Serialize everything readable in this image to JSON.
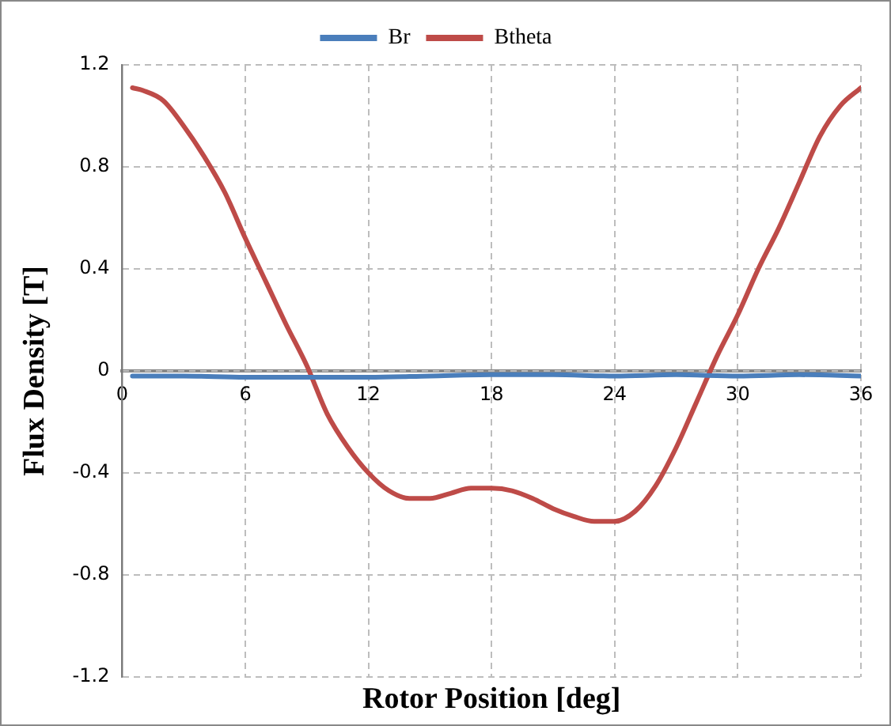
{
  "chart_data": {
    "type": "line",
    "xlabel": "Rotor Position [deg]",
    "ylabel": "Flux Density [T]",
    "xlim": [
      0,
      36
    ],
    "xticks": [
      0,
      6,
      12,
      18,
      24,
      30,
      36
    ],
    "ylim": [
      -1.2,
      1.2
    ],
    "yticks": [
      {
        "value": 1.2,
        "label": "1.2"
      },
      {
        "value": 0.8,
        "label": "0.8"
      },
      {
        "value": 0.4,
        "label": "0.4"
      },
      {
        "value": 0,
        "label": "0"
      },
      {
        "value": -0.4,
        "label": "-0.4"
      },
      {
        "value": -0.8,
        "label": "-0.8"
      },
      {
        "value": -1.2,
        "label": "-1.2"
      }
    ],
    "grid": true,
    "legend": "top",
    "line_style": "solid",
    "marker": "none",
    "series": [
      {
        "name": "Br",
        "color": "#4a7ebb",
        "x": [
          0.5,
          3,
          6,
          9,
          12,
          15,
          18,
          21,
          24,
          27,
          30,
          33,
          36
        ],
        "values": [
          -0.02,
          -0.02,
          -0.025,
          -0.025,
          -0.025,
          -0.02,
          -0.015,
          -0.015,
          -0.02,
          -0.015,
          -0.02,
          -0.015,
          -0.02
        ]
      },
      {
        "name": "Btheta",
        "color": "#be4b48",
        "x": [
          0.5,
          1,
          2,
          3,
          4,
          5,
          6,
          7,
          8,
          9,
          10,
          11,
          12,
          13,
          14,
          15,
          16,
          17,
          18,
          19,
          20,
          21,
          22,
          23,
          24,
          25,
          26,
          27,
          28,
          29,
          30,
          31,
          32,
          33,
          34,
          35,
          36
        ],
        "values": [
          1.11,
          1.1,
          1.06,
          0.96,
          0.84,
          0.7,
          0.52,
          0.35,
          0.18,
          0.02,
          -0.17,
          -0.3,
          -0.4,
          -0.47,
          -0.5,
          -0.5,
          -0.48,
          -0.46,
          -0.46,
          -0.47,
          -0.5,
          -0.54,
          -0.57,
          -0.59,
          -0.59,
          -0.55,
          -0.45,
          -0.3,
          -0.12,
          0.06,
          0.22,
          0.4,
          0.56,
          0.74,
          0.92,
          1.04,
          1.11
        ]
      }
    ]
  }
}
